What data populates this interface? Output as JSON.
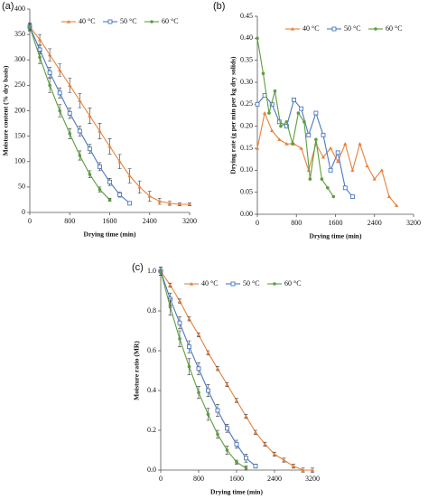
{
  "chart_data": [
    {
      "type": "line",
      "panel_label": "(a)",
      "xlabel": "Drying time (min)",
      "ylabel": "Moisture content (% dry basis)",
      "xlim": [
        0,
        3200
      ],
      "xticks": [
        0,
        800,
        1600,
        2400,
        3200
      ],
      "ylim": [
        0,
        400
      ],
      "yticks": [
        0,
        50,
        100,
        150,
        200,
        250,
        300,
        350,
        400
      ],
      "legend": "upper right",
      "series": [
        {
          "name": "40 °C",
          "color": "#e8813a",
          "marker": "triangle",
          "x": [
            0,
            200,
            400,
            600,
            800,
            1000,
            1200,
            1400,
            1600,
            1800,
            2000,
            2200,
            2400,
            2600,
            2800,
            3000,
            3200
          ],
          "values": [
            365,
            340,
            310,
            280,
            250,
            220,
            190,
            160,
            130,
            100,
            72,
            50,
            32,
            22,
            18,
            16,
            16
          ],
          "errors": [
            8,
            10,
            12,
            12,
            14,
            14,
            15,
            15,
            15,
            14,
            14,
            12,
            10,
            6,
            4,
            3,
            3
          ]
        },
        {
          "name": "50 °C",
          "color": "#4a78c0",
          "marker": "square",
          "x": [
            0,
            200,
            400,
            600,
            800,
            1000,
            1200,
            1400,
            1600,
            1800,
            2000
          ],
          "values": [
            365,
            320,
            275,
            235,
            195,
            160,
            125,
            90,
            60,
            35,
            18
          ],
          "errors": [
            6,
            8,
            10,
            10,
            10,
            10,
            9,
            8,
            7,
            5,
            3
          ]
        },
        {
          "name": "60 °C",
          "color": "#5d9e3f",
          "marker": "circle",
          "x": [
            0,
            200,
            400,
            600,
            800,
            1000,
            1200,
            1400,
            1600
          ],
          "values": [
            365,
            305,
            250,
            200,
            155,
            112,
            75,
            45,
            25
          ],
          "errors": [
            6,
            12,
            14,
            12,
            10,
            9,
            7,
            5,
            3
          ]
        }
      ]
    },
    {
      "type": "line",
      "panel_label": "(b)",
      "xlabel": "Drying time (min)",
      "ylabel": "Drying rate (g per min per kg dry solids)",
      "xlim": [
        0,
        3200
      ],
      "xticks": [
        0,
        800,
        1600,
        2400,
        3200
      ],
      "ylim": [
        0,
        0.45
      ],
      "yticks": [
        {
          "value": 0,
          "label": "0.00"
        },
        {
          "value": 0.05,
          "label": "0.05"
        },
        {
          "value": 0.1,
          "label": "0.10"
        },
        {
          "value": 0.15,
          "label": "0.15"
        },
        {
          "value": 0.2,
          "label": "0.20"
        },
        {
          "value": 0.25,
          "label": "0.25"
        },
        {
          "value": 0.3,
          "label": "0.30"
        },
        {
          "value": 0.35,
          "label": "0.35"
        },
        {
          "value": 0.4,
          "label": "0.40"
        },
        {
          "value": 0.45,
          "label": "0.45"
        }
      ],
      "legend": "upper right",
      "series": [
        {
          "name": "40 °C",
          "color": "#e8813a",
          "marker": "triangle",
          "x": [
            0,
            150,
            300,
            450,
            600,
            750,
            900,
            1050,
            1200,
            1350,
            1500,
            1650,
            1800,
            1950,
            2100,
            2250,
            2400,
            2550,
            2700,
            2850
          ],
          "values": [
            0.15,
            0.23,
            0.19,
            0.17,
            0.16,
            0.16,
            0.15,
            0.1,
            0.16,
            0.13,
            0.15,
            0.12,
            0.16,
            0.1,
            0.16,
            0.11,
            0.08,
            0.1,
            0.04,
            0.02
          ]
        },
        {
          "name": "50 °C",
          "color": "#4a78c0",
          "marker": "square",
          "x": [
            0,
            150,
            300,
            450,
            600,
            750,
            900,
            1050,
            1200,
            1350,
            1500,
            1650,
            1800,
            1950
          ],
          "values": [
            0.25,
            0.27,
            0.25,
            0.21,
            0.2,
            0.26,
            0.24,
            0.18,
            0.23,
            0.18,
            0.1,
            0.14,
            0.06,
            0.04
          ]
        },
        {
          "name": "60 °C",
          "color": "#5d9e3f",
          "marker": "circle",
          "x": [
            0,
            120,
            240,
            360,
            480,
            600,
            720,
            840,
            960,
            1080,
            1200,
            1320,
            1440,
            1560
          ],
          "values": [
            0.4,
            0.32,
            0.23,
            0.28,
            0.2,
            0.21,
            0.16,
            0.23,
            0.21,
            0.08,
            0.17,
            0.08,
            0.06,
            0.04
          ]
        }
      ]
    },
    {
      "type": "line",
      "panel_label": "(c)",
      "xlabel": "Drying time (min)",
      "ylabel": "Moisture ratio (MR)",
      "xlim": [
        0,
        3200
      ],
      "xticks": [
        0,
        800,
        1600,
        2400,
        3200
      ],
      "ylim": [
        0,
        1
      ],
      "yticks": [
        {
          "value": 0,
          "label": "0.0"
        },
        {
          "value": 0.2,
          "label": "0.2"
        },
        {
          "value": 0.4,
          "label": "0.4"
        },
        {
          "value": 0.6,
          "label": "0.6"
        },
        {
          "value": 0.8,
          "label": "0.8"
        },
        {
          "value": 1,
          "label": "1.0"
        }
      ],
      "legend": "upper right",
      "series": [
        {
          "name": "40 °C",
          "color": "#e8813a",
          "marker": "triangle",
          "x": [
            0,
            200,
            400,
            600,
            800,
            1000,
            1200,
            1400,
            1600,
            1800,
            2000,
            2200,
            2400,
            2600,
            2800,
            3000,
            3200
          ],
          "values": [
            1,
            0.93,
            0.85,
            0.76,
            0.68,
            0.59,
            0.51,
            0.43,
            0.35,
            0.27,
            0.19,
            0.13,
            0.08,
            0.05,
            0.02,
            0,
            0
          ],
          "errors": [
            0.01,
            0.01,
            0.01,
            0.01,
            0.01,
            0.01,
            0.01,
            0.01,
            0.01,
            0.01,
            0.01,
            0.01,
            0.01,
            0.01,
            0.01,
            0.01,
            0.01
          ]
        },
        {
          "name": "50 °C",
          "color": "#4a78c0",
          "marker": "square",
          "x": [
            0,
            200,
            400,
            600,
            800,
            1000,
            1200,
            1400,
            1600,
            1800,
            2000
          ],
          "values": [
            1,
            0.86,
            0.74,
            0.62,
            0.51,
            0.4,
            0.3,
            0.21,
            0.13,
            0.06,
            0.02
          ],
          "errors": [
            0.02,
            0.03,
            0.03,
            0.03,
            0.03,
            0.03,
            0.03,
            0.02,
            0.02,
            0.02,
            0.01
          ]
        },
        {
          "name": "60 °C",
          "color": "#5d9e3f",
          "marker": "circle",
          "x": [
            0,
            200,
            400,
            600,
            800,
            1000,
            1200,
            1400,
            1600,
            1800
          ],
          "values": [
            1,
            0.82,
            0.66,
            0.52,
            0.39,
            0.28,
            0.18,
            0.1,
            0.04,
            0.01
          ],
          "errors": [
            0.02,
            0.04,
            0.04,
            0.04,
            0.03,
            0.03,
            0.02,
            0.02,
            0.01,
            0.01
          ]
        }
      ]
    }
  ]
}
